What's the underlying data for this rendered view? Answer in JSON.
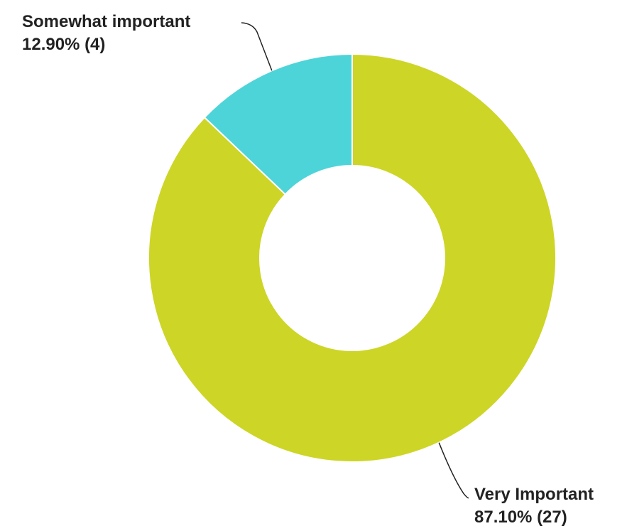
{
  "chart_data": {
    "type": "pie",
    "donut": true,
    "title": "",
    "categories": [
      "Very Important",
      "Somewhat important"
    ],
    "values": [
      87.1,
      12.9
    ],
    "counts": [
      27,
      4
    ],
    "value_labels": [
      "87.10% (27)",
      "12.90% (4)"
    ],
    "colors": [
      "#cdd526",
      "#4dd4d9"
    ],
    "start": "12 o'clock",
    "direction": "clockwise",
    "legend": "none"
  }
}
